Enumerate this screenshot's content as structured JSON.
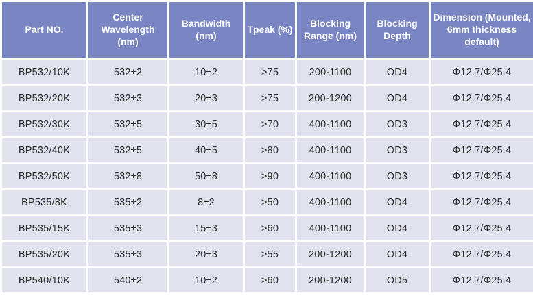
{
  "colors": {
    "header_bg": "#7a85c4",
    "header_text": "#ffffff",
    "cell_bg": "#e2e2ee",
    "cell_text": "#2d2d2d",
    "grid": "#ffffff"
  },
  "table": {
    "columns": [
      {
        "key": "part-no",
        "label": "Part NO."
      },
      {
        "key": "center-wavelength",
        "label": "Center Wavelength (nm)"
      },
      {
        "key": "bandwidth",
        "label": "Bandwidth (nm)"
      },
      {
        "key": "tpeak",
        "label": "Tpeak (%)"
      },
      {
        "key": "blocking-range",
        "label": "Blocking Range (nm)"
      },
      {
        "key": "blocking-depth",
        "label": "Blocking Depth"
      },
      {
        "key": "dimension",
        "label": "Dimension (Mounted, 6mm thickness default)"
      }
    ],
    "rows": [
      [
        "BP532/10K",
        "532±2",
        "10±2",
        ">75",
        "200-1100",
        "OD4",
        "Φ12.7/Φ25.4"
      ],
      [
        "BP532/20K",
        "532±3",
        "20±3",
        ">75",
        "200-1200",
        "OD4",
        "Φ12.7/Φ25.4"
      ],
      [
        "BP532/30K",
        "532±5",
        "30±5",
        ">70",
        "400-1100",
        "OD3",
        "Φ12.7/Φ25.4"
      ],
      [
        "BP532/40K",
        "532±5",
        "40±5",
        ">80",
        "400-1100",
        "OD3",
        "Φ12.7/Φ25.4"
      ],
      [
        "BP532/50K",
        "532±8",
        "50±8",
        ">90",
        "400-1100",
        "OD3",
        "Φ12.7/Φ25.4"
      ],
      [
        "BP535/8K",
        "535±2",
        "8±2",
        ">50",
        "400-1100",
        "OD4",
        "Φ12.7/Φ25.4"
      ],
      [
        "BP535/15K",
        "535±3",
        "15±3",
        ">60",
        "400-1100",
        "OD4",
        "Φ12.7/Φ25.4"
      ],
      [
        "BP535/20K",
        "535±3",
        "20±3",
        ">55",
        "200-1200",
        "OD4",
        "Φ12.7/Φ25.4"
      ],
      [
        "BP540/10K",
        "540±2",
        "10±2",
        ">60",
        "200-1200",
        "OD5",
        "Φ12.7/Φ25.4"
      ]
    ]
  }
}
